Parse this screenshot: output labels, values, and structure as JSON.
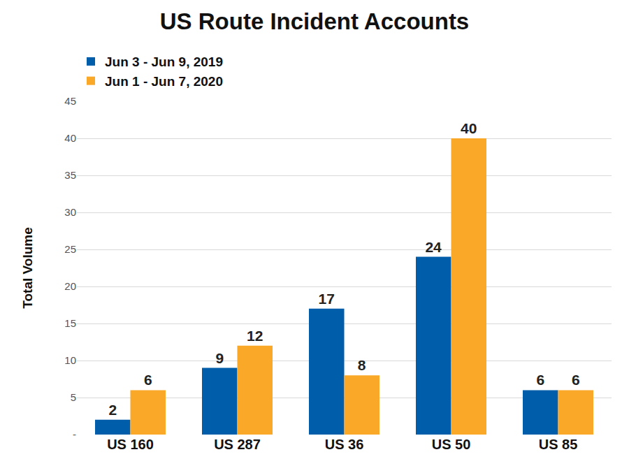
{
  "chart_data": {
    "type": "bar",
    "title": "US Route Incident Accounts",
    "y_label": "Total Volume",
    "categories": [
      "US 160",
      "US 287",
      "US 36",
      "US 50",
      "US 85"
    ],
    "series": [
      {
        "name": "Jun 3 - Jun 9, 2019",
        "color": "#005daa",
        "values": [
          2,
          9,
          17,
          24,
          6
        ]
      },
      {
        "name": "Jun 1 - Jun 7, 2020",
        "color": "#f9a828",
        "values": [
          6,
          12,
          8,
          40,
          6
        ]
      }
    ],
    "ylim": [
      0,
      45
    ],
    "yticks": [
      {
        "value": 0,
        "label": "-"
      },
      5,
      10,
      15,
      20,
      25,
      30,
      35,
      40,
      45
    ],
    "grid": true,
    "legend": "top",
    "data_labels": true
  }
}
